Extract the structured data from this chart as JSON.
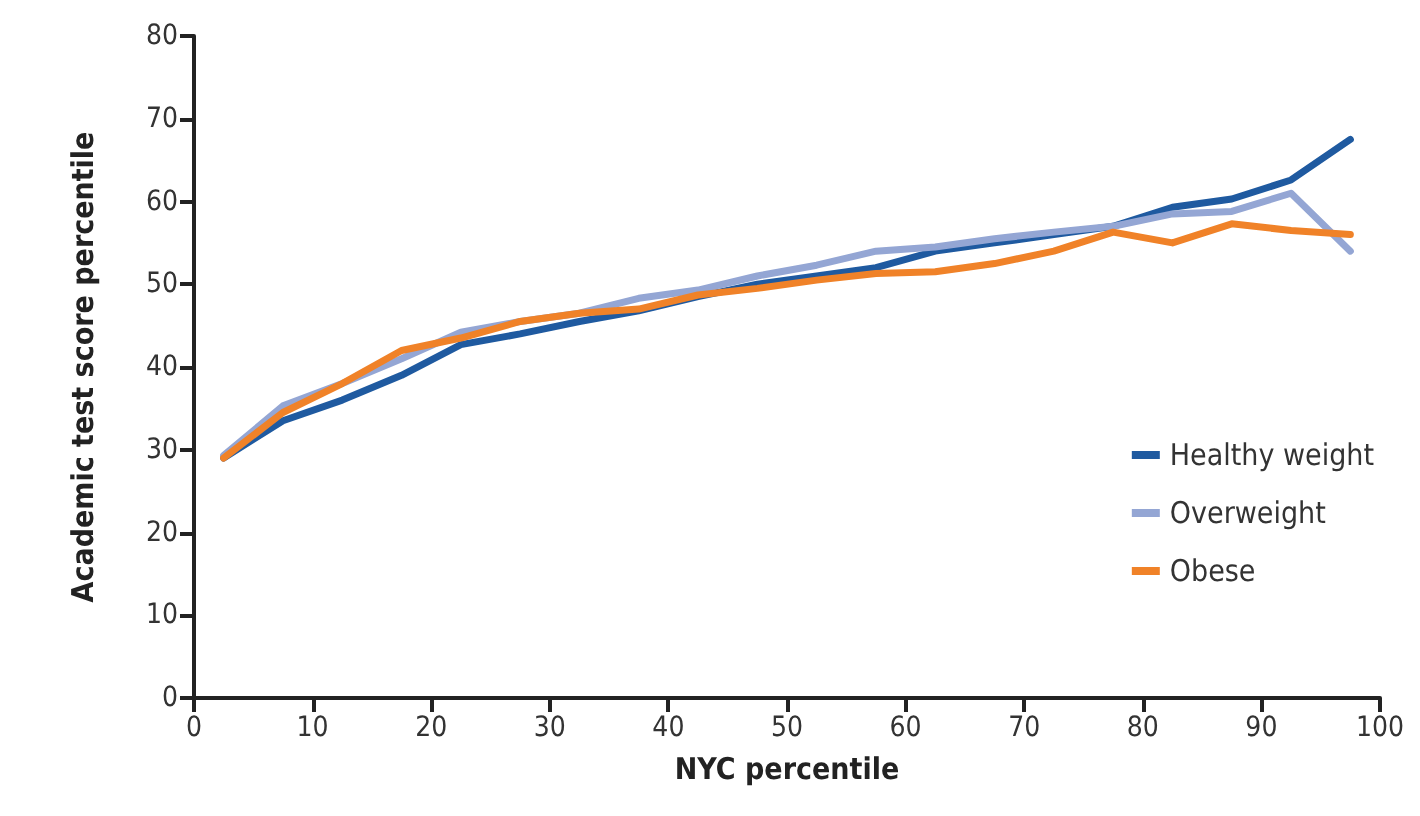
{
  "chart_data": {
    "type": "line",
    "xlabel": "NYC percentile",
    "ylabel": "Academic test score percentile",
    "x": [
      2.5,
      7.5,
      12.5,
      17.5,
      22.5,
      27.5,
      32.5,
      37.5,
      42.5,
      47.5,
      52.5,
      57.5,
      62.5,
      67.5,
      72.5,
      77.5,
      82.5,
      87.5,
      92.5,
      97.5
    ],
    "series": [
      {
        "name": "Healthy weight",
        "color": "#1f5aa0",
        "values": [
          29,
          33.5,
          36,
          39,
          42.7,
          44,
          45.5,
          46.8,
          48.5,
          50,
          51,
          52,
          54,
          55,
          56,
          57,
          59.3,
          60.3,
          62.6,
          67.5
        ]
      },
      {
        "name": "Overweight",
        "color": "#94a6d4",
        "values": [
          29.3,
          35.3,
          38,
          41,
          44.2,
          45.5,
          46.5,
          48.3,
          49.3,
          51,
          52.3,
          54,
          54.5,
          55.5,
          56.3,
          57,
          58.5,
          58.8,
          61,
          54
        ]
      },
      {
        "name": "Obese",
        "color": "#f08228",
        "values": [
          29,
          34.5,
          38,
          42,
          43.5,
          45.5,
          46.5,
          47,
          48.7,
          49.5,
          50.5,
          51.3,
          51.5,
          52.5,
          54,
          56.3,
          55,
          57.3,
          56.5,
          56
        ]
      }
    ],
    "xlim": [
      0,
      100
    ],
    "xticks": [
      0,
      10,
      20,
      30,
      40,
      50,
      60,
      70,
      80,
      90,
      100
    ],
    "ylim": [
      0,
      80
    ],
    "yticks": [
      0,
      10,
      20,
      30,
      40,
      50,
      60,
      70,
      80
    ],
    "grid": false,
    "legend": "right",
    "marker": "none",
    "line_style": "solid"
  }
}
